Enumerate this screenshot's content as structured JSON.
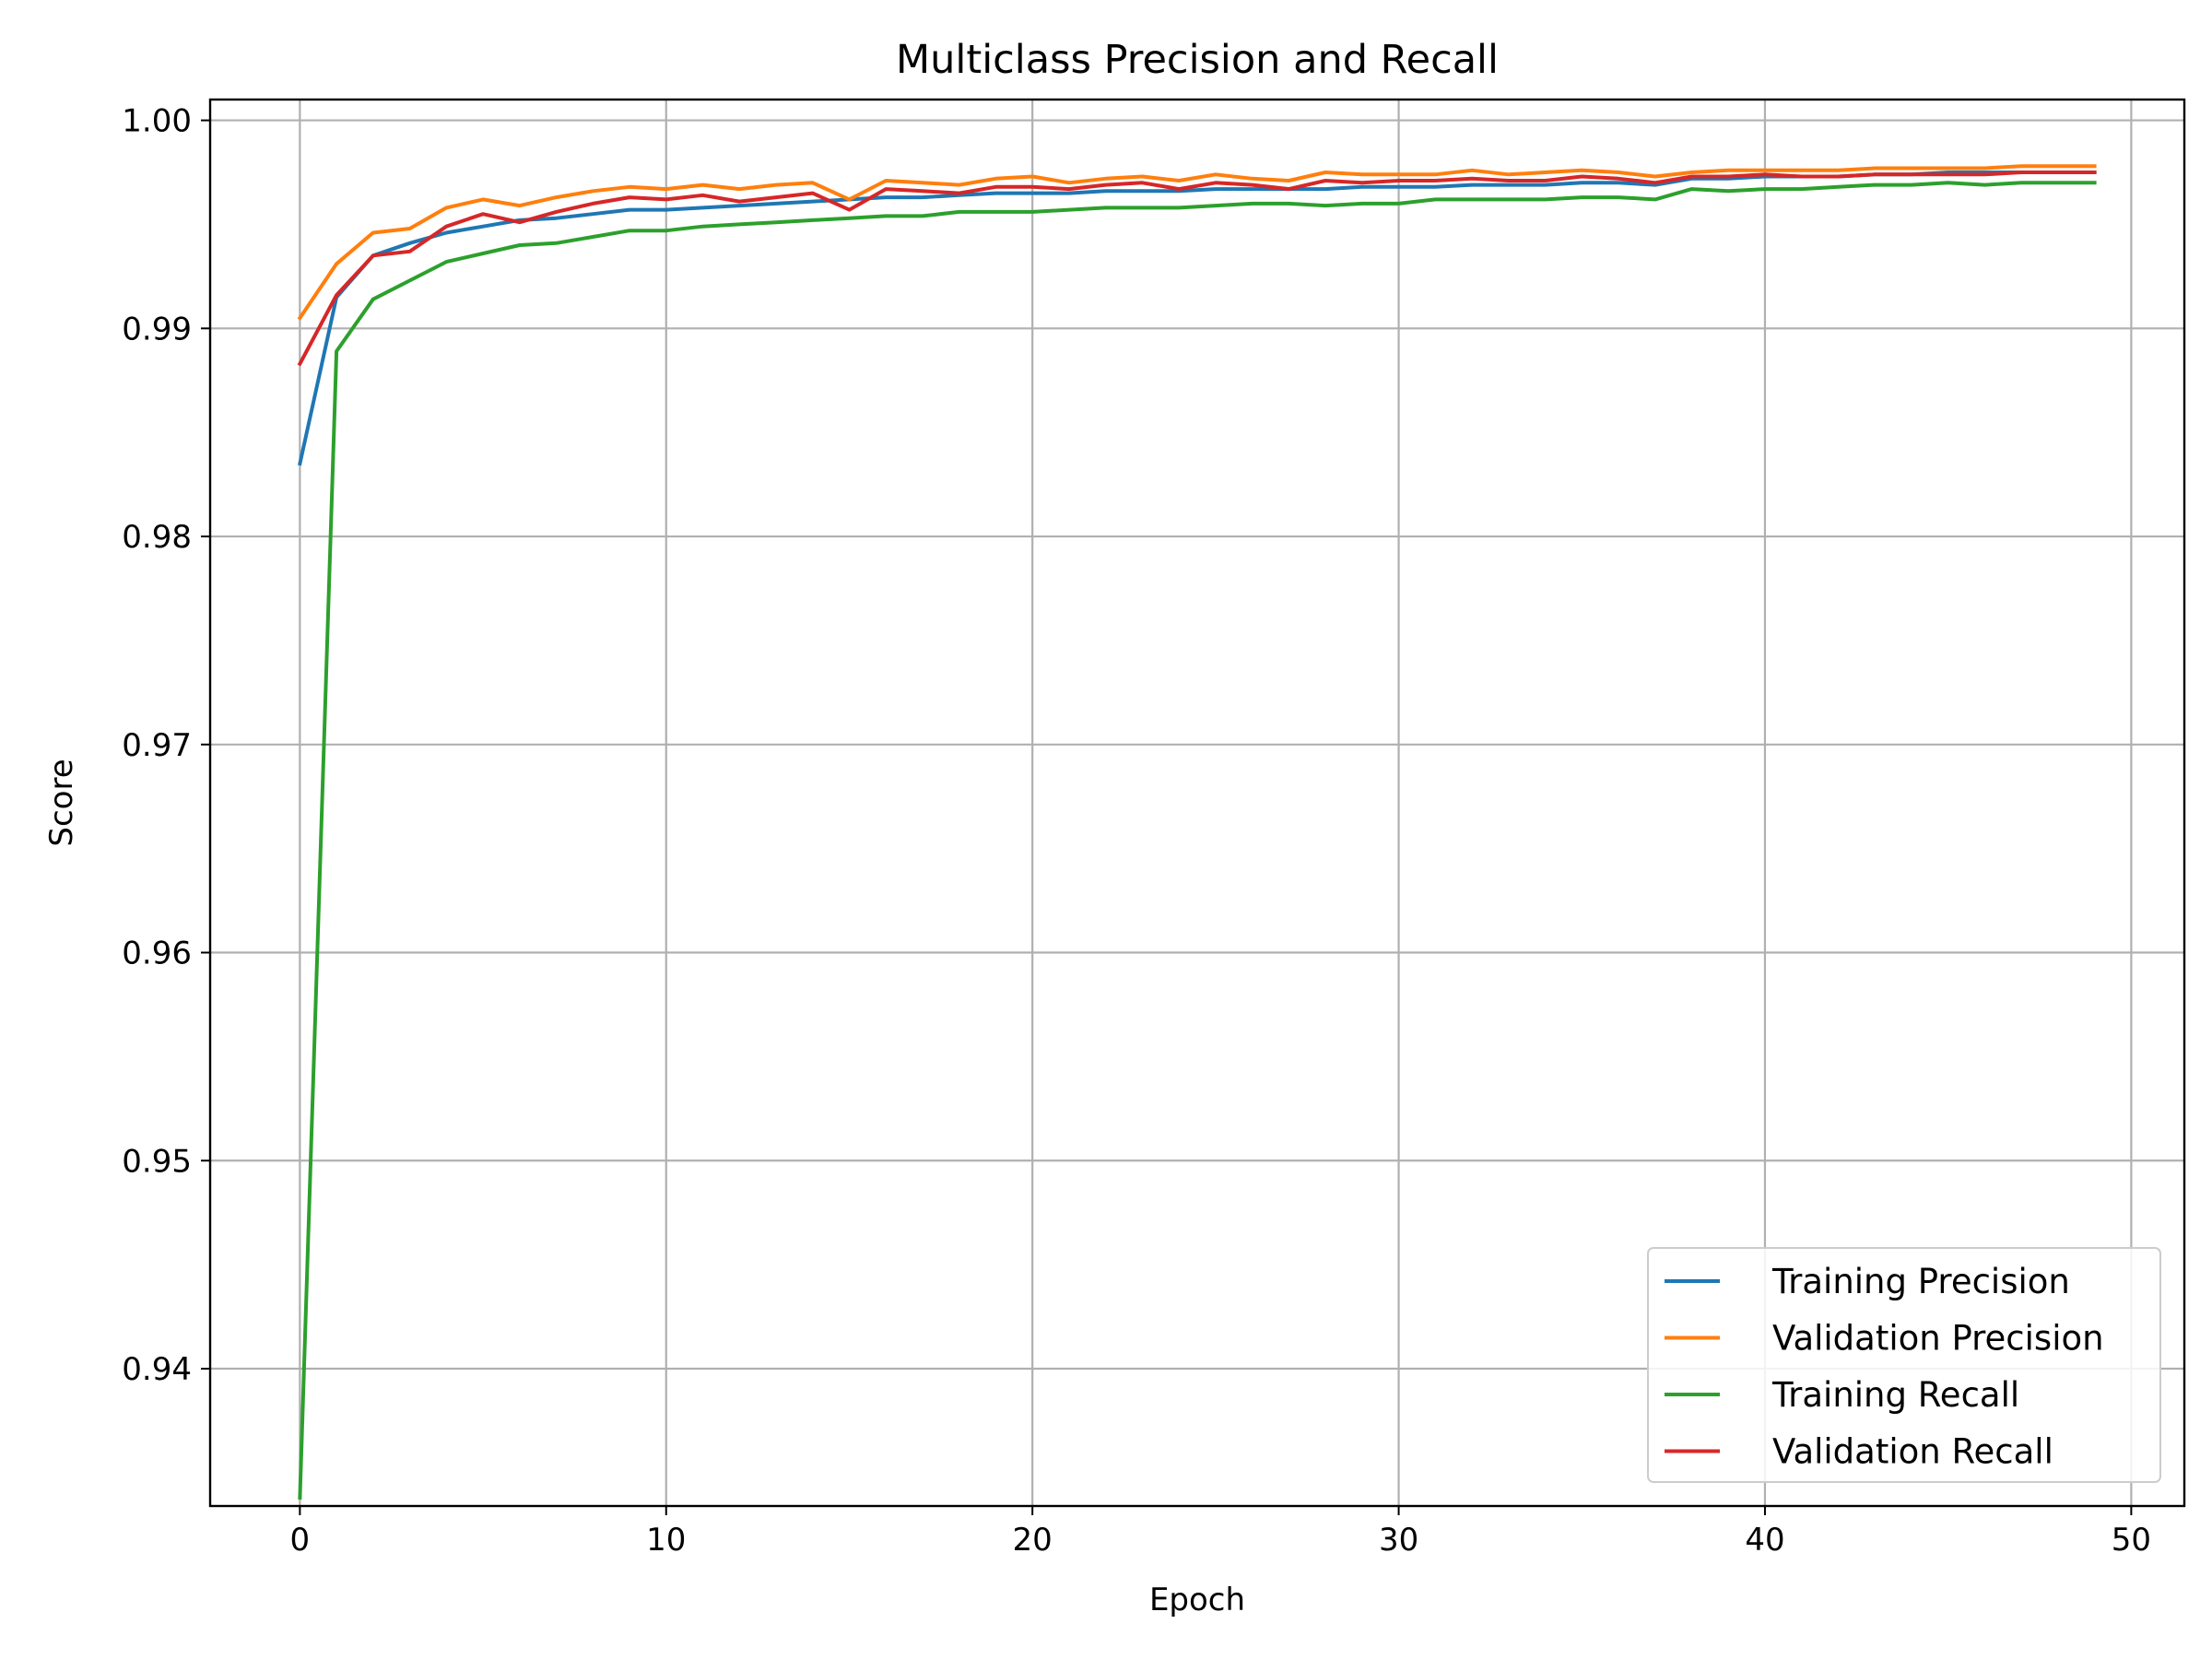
{
  "chart_data": {
    "type": "line",
    "title": "Multiclass Precision and Recall",
    "xlabel": "Epoch",
    "ylabel": "Score",
    "xlim": [
      -2.45,
      51.45
    ],
    "ylim": [
      0.9334,
      1.001
    ],
    "xticks": [
      0,
      10,
      20,
      30,
      40,
      50
    ],
    "xtick_labels": [
      "0",
      "10",
      "20",
      "30",
      "40",
      "50"
    ],
    "yticks": [
      0.94,
      0.95,
      0.96,
      0.97,
      0.98,
      0.99,
      1.0
    ],
    "ytick_labels": [
      "0.94",
      "0.95",
      "0.96",
      "0.97",
      "0.98",
      "0.99",
      "1.00"
    ],
    "grid": true,
    "legend_position": "lower-right",
    "x": [
      0,
      1,
      2,
      3,
      4,
      5,
      6,
      7,
      8,
      9,
      10,
      11,
      12,
      13,
      14,
      15,
      16,
      17,
      18,
      19,
      20,
      21,
      22,
      23,
      24,
      25,
      26,
      27,
      28,
      29,
      30,
      31,
      32,
      33,
      34,
      35,
      36,
      37,
      38,
      39,
      40,
      41,
      42,
      43,
      44,
      45,
      46,
      47,
      48,
      49
    ],
    "series": [
      {
        "name": "Training Precision",
        "color": "#1f77b4",
        "values": [
          0.9835,
          0.9915,
          0.9935,
          0.9941,
          0.9946,
          0.9949,
          0.9952,
          0.9953,
          0.9955,
          0.9957,
          0.9957,
          0.9958,
          0.9959,
          0.996,
          0.9961,
          0.9962,
          0.9963,
          0.9963,
          0.9964,
          0.9965,
          0.9965,
          0.9965,
          0.9966,
          0.9966,
          0.9966,
          0.9967,
          0.9967,
          0.9967,
          0.9967,
          0.9968,
          0.9968,
          0.9968,
          0.9969,
          0.9969,
          0.9969,
          0.997,
          0.997,
          0.9969,
          0.9972,
          0.9972,
          0.9973,
          0.9973,
          0.9973,
          0.9974,
          0.9974,
          0.9975,
          0.9975,
          0.9975,
          0.9975,
          0.9975
        ]
      },
      {
        "name": "Validation Precision",
        "color": "#ff7f0e",
        "values": [
          0.9905,
          0.9931,
          0.9946,
          0.9948,
          0.9958,
          0.9962,
          0.9959,
          0.9963,
          0.9966,
          0.9968,
          0.9967,
          0.9969,
          0.9967,
          0.9969,
          0.997,
          0.9962,
          0.9971,
          0.997,
          0.9969,
          0.9972,
          0.9973,
          0.997,
          0.9972,
          0.9973,
          0.9971,
          0.9974,
          0.9972,
          0.9971,
          0.9975,
          0.9974,
          0.9974,
          0.9974,
          0.9976,
          0.9974,
          0.9975,
          0.9976,
          0.9975,
          0.9973,
          0.9975,
          0.9976,
          0.9976,
          0.9976,
          0.9976,
          0.9977,
          0.9977,
          0.9977,
          0.9977,
          0.9978,
          0.9978,
          0.9978
        ]
      },
      {
        "name": "Training Recall",
        "color": "#2ca02c",
        "values": [
          0.9338,
          0.9889,
          0.9914,
          0.9923,
          0.9932,
          0.9936,
          0.994,
          0.9941,
          0.9944,
          0.9947,
          0.9947,
          0.9949,
          0.995,
          0.9951,
          0.9952,
          0.9953,
          0.9954,
          0.9954,
          0.9956,
          0.9956,
          0.9956,
          0.9957,
          0.9958,
          0.9958,
          0.9958,
          0.9959,
          0.996,
          0.996,
          0.9959,
          0.996,
          0.996,
          0.9962,
          0.9962,
          0.9962,
          0.9962,
          0.9963,
          0.9963,
          0.9962,
          0.9967,
          0.9966,
          0.9967,
          0.9967,
          0.9968,
          0.9969,
          0.9969,
          0.997,
          0.9969,
          0.997,
          0.997,
          0.997
        ]
      },
      {
        "name": "Validation Recall",
        "color": "#d62728",
        "values": [
          0.9883,
          0.9916,
          0.9935,
          0.9937,
          0.9949,
          0.9955,
          0.9951,
          0.9956,
          0.996,
          0.9963,
          0.9962,
          0.9964,
          0.9961,
          0.9963,
          0.9965,
          0.9957,
          0.9967,
          0.9966,
          0.9965,
          0.9968,
          0.9968,
          0.9967,
          0.9969,
          0.997,
          0.9967,
          0.997,
          0.9969,
          0.9967,
          0.9971,
          0.997,
          0.9971,
          0.9971,
          0.9972,
          0.9971,
          0.9971,
          0.9973,
          0.9972,
          0.997,
          0.9973,
          0.9973,
          0.9974,
          0.9973,
          0.9973,
          0.9974,
          0.9974,
          0.9974,
          0.9974,
          0.9975,
          0.9975,
          0.9975
        ]
      }
    ]
  }
}
